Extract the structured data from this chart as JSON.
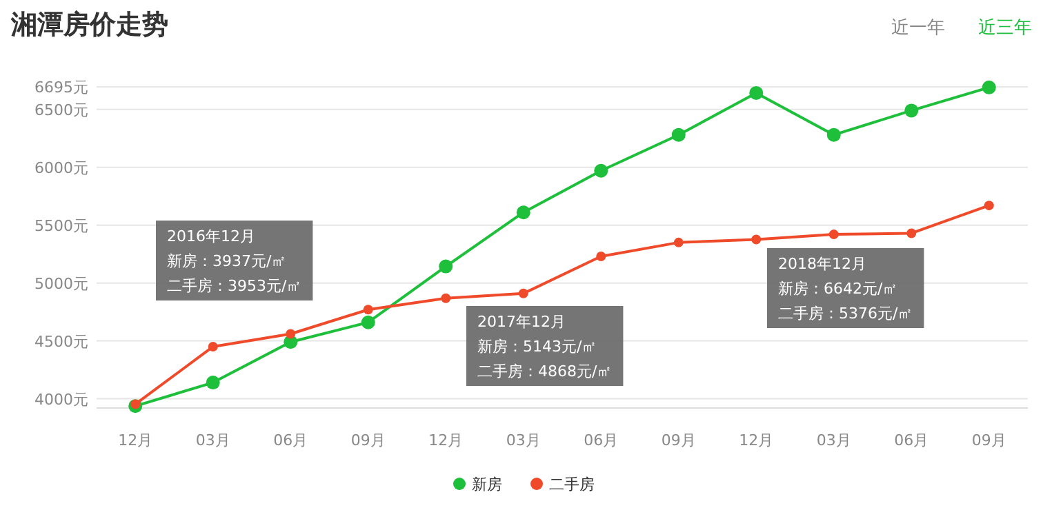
{
  "chart_data": {
    "type": "line",
    "title": "湘潭房价走势",
    "categories": [
      "12月",
      "03月",
      "06月",
      "09月",
      "12月",
      "03月",
      "06月",
      "09月",
      "12月",
      "03月",
      "06月",
      "09月"
    ],
    "series": [
      {
        "name": "新房",
        "color": "#1dbf3b",
        "values": [
          3937,
          4140,
          4490,
          4660,
          5143,
          5610,
          5970,
          6280,
          6642,
          6280,
          6490,
          6690
        ]
      },
      {
        "name": "二手房",
        "color": "#ef4b2b",
        "values": [
          3953,
          4450,
          4560,
          4770,
          4868,
          4910,
          5230,
          5350,
          5376,
          5420,
          5430,
          5670
        ]
      }
    ],
    "ylim": [
      3920,
      6695
    ],
    "yticks": [
      {
        "value": 4000,
        "label": "4000元"
      },
      {
        "value": 4500,
        "label": "4500元"
      },
      {
        "value": 5000,
        "label": "5000元"
      },
      {
        "value": 5500,
        "label": "5500元"
      },
      {
        "value": 6000,
        "label": "6000元"
      },
      {
        "value": 6500,
        "label": "6500元"
      },
      {
        "value": 6695,
        "label": "6695元"
      }
    ],
    "grid": "y",
    "legend": "bottom",
    "marker": "circle",
    "line_style": "solid",
    "annotations": [
      "2016年12月",
      "新房：3937元/㎡",
      "二手房：3953元/㎡",
      "2017年12月",
      "新房：5143元/㎡",
      "二手房：4868元/㎡",
      "2018年12月",
      "新房：6642元/㎡",
      "二手房：5376元/㎡",
      "近一年",
      "近三年"
    ]
  }
}
